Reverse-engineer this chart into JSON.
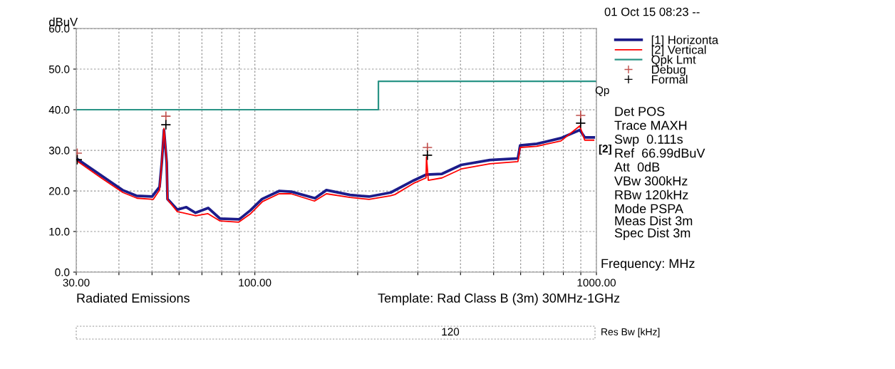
{
  "chart_data": {
    "type": "line",
    "xlabel": "Frequency: MHz",
    "ylabel": "dBuV",
    "log": "x",
    "xlim": [
      30,
      1000
    ],
    "xticks": [
      {
        "value": 30,
        "label": "30.00"
      },
      {
        "value": 40,
        "label": null
      },
      {
        "value": 50,
        "label": null
      },
      {
        "value": 60,
        "label": null
      },
      {
        "value": 70,
        "label": null
      },
      {
        "value": 80,
        "label": null
      },
      {
        "value": 90,
        "label": null
      },
      {
        "value": 100,
        "label": "100.00"
      },
      {
        "value": 200,
        "label": null
      },
      {
        "value": 300,
        "label": null
      },
      {
        "value": 400,
        "label": null
      },
      {
        "value": 500,
        "label": null
      },
      {
        "value": 600,
        "label": null
      },
      {
        "value": 700,
        "label": null
      },
      {
        "value": 800,
        "label": null
      },
      {
        "value": 900,
        "label": null
      },
      {
        "value": 1000,
        "label": "1000.00"
      }
    ],
    "ylim": [
      0,
      60
    ],
    "yticks": [
      {
        "value": 0,
        "label": "0.0"
      },
      {
        "value": 10,
        "label": "10.0"
      },
      {
        "value": 20,
        "label": "20.0"
      },
      {
        "value": 30,
        "label": "30.0"
      },
      {
        "value": 40,
        "label": "40.0"
      },
      {
        "value": 50,
        "label": "50.0"
      },
      {
        "value": 60,
        "label": "60.0"
      }
    ],
    "grid": true,
    "legend": "right",
    "line_style": "solid",
    "series": [
      {
        "name": "[1] Horizonta",
        "color": "#1c1c8a",
        "x": [
          30,
          35.5,
          41,
          45,
          50,
          52.6,
          53.4,
          54.2,
          55.2,
          55.5,
          59.3,
          63,
          67,
          73,
          79,
          90,
          97,
          105,
          118,
          128,
          150,
          162,
          190,
          216,
          250,
          292,
          317,
          353,
          402,
          488,
          589,
          598,
          669,
          787,
          894,
          924,
          982
        ],
        "values": [
          28,
          23.8,
          20.2,
          18.8,
          18.6,
          21,
          27,
          35,
          27,
          18,
          15.4,
          16,
          14.6,
          15.8,
          13.2,
          13,
          15.2,
          18,
          20,
          19.8,
          18.2,
          20.2,
          19,
          18.6,
          19.6,
          22.6,
          24,
          24.2,
          26.4,
          27.6,
          28,
          31.2,
          31.6,
          33,
          35,
          33.2,
          33.2
        ]
      },
      {
        "name": "[2] Vertical",
        "color": "#ff0000",
        "x": [
          30,
          35.5,
          41.1,
          45.2,
          50.4,
          52.6,
          53.4,
          54.2,
          55.2,
          55.5,
          59.3,
          67.2,
          72.9,
          79.1,
          89.6,
          97.2,
          105.4,
          117.7,
          127.6,
          149.5,
          162,
          190,
          216,
          249,
          257,
          292,
          317,
          318,
          322,
          353,
          402,
          488,
          589,
          598,
          669,
          787,
          894,
          924,
          982
        ],
        "values": [
          27.5,
          23.2,
          19.6,
          18.2,
          17.9,
          20.2,
          27.2,
          35.4,
          27.2,
          17.9,
          14.9,
          13.9,
          14.4,
          12.6,
          12.3,
          14.4,
          17.4,
          19.3,
          19.3,
          17.5,
          19.3,
          18.4,
          17.9,
          18.8,
          19.1,
          21.9,
          23.2,
          28.4,
          22.6,
          23.2,
          25.4,
          26.7,
          27.2,
          30.7,
          31,
          32.3,
          36,
          32.5,
          32.5
        ]
      },
      {
        "name": "Qpk Lmt",
        "color": "#2a9486",
        "type": "step",
        "x": [
          30,
          230,
          1000
        ],
        "values": [
          40,
          47,
          47
        ]
      },
      {
        "name": "Debug",
        "color": "#c0504d",
        "type": "scatter",
        "marker": "cross",
        "x": [
          30.2,
          54.9,
          320,
          899
        ],
        "values": [
          29.3,
          38.4,
          30.7,
          38.6
        ]
      },
      {
        "name": "Formal",
        "color": "#000000",
        "type": "scatter",
        "marker": "cross",
        "x": [
          30.2,
          54.9,
          320,
          899
        ],
        "values": [
          27.7,
          36.3,
          28.8,
          36.7
        ]
      }
    ],
    "annotations": [
      "01 Oct 15 08:23 --",
      "Qp",
      "Det POS",
      "Trace MAXH",
      "Swp  0.111s",
      "Ref  66.99dBuV",
      "Att  0dB",
      "VBw 300kHz",
      "RBw 120kHz",
      "Mode PSPA",
      "Meas Dist 3m",
      "Spec Dist 3m",
      "[2]",
      "Radiated Emissions",
      "Template: Rad Class B (3m) 30MHz-1GHz",
      "120",
      "Res Bw [kHz]"
    ]
  }
}
